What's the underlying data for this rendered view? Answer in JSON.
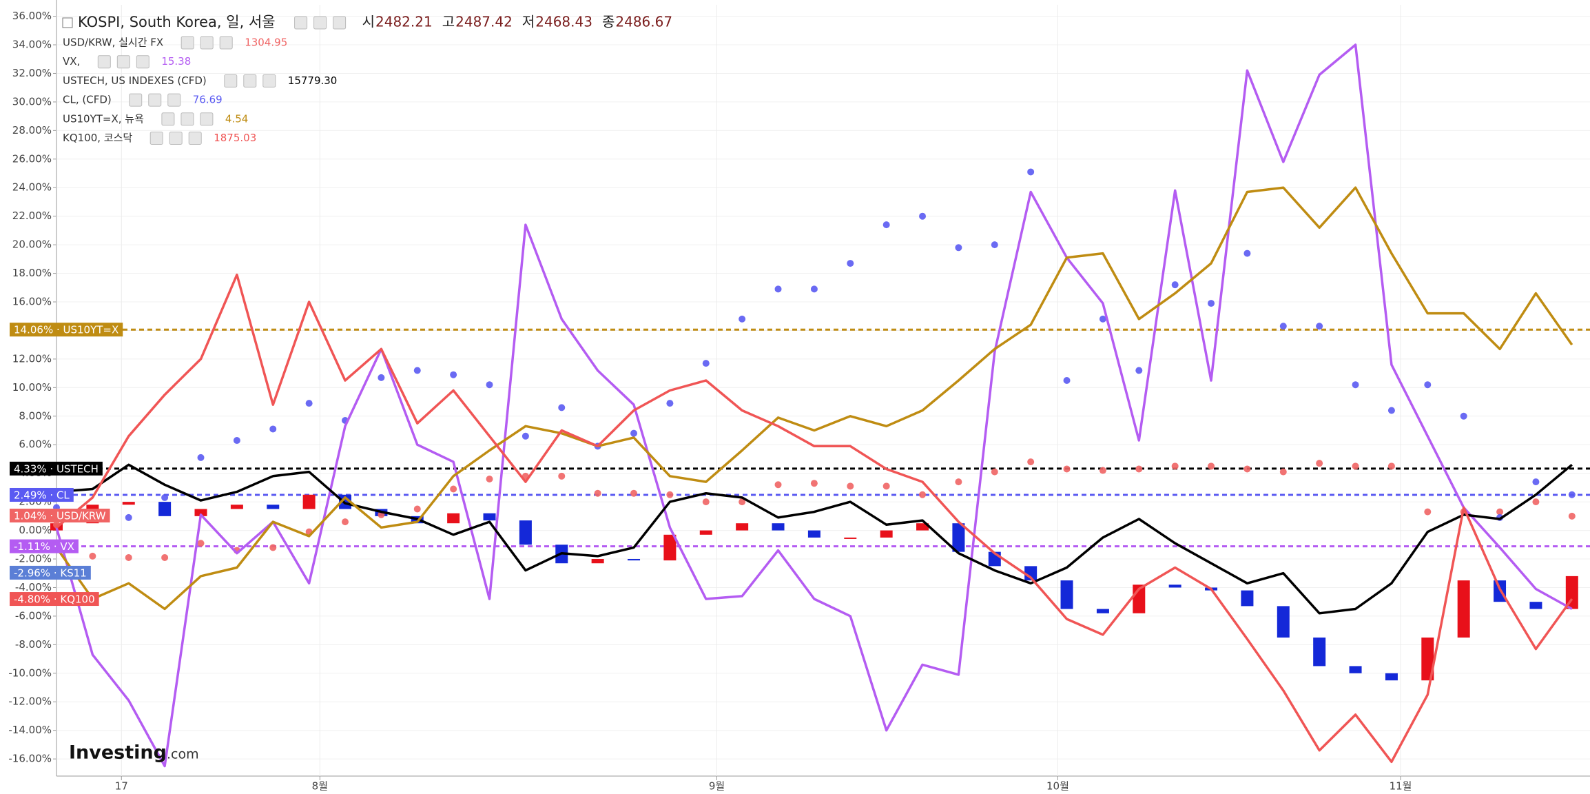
{
  "chart_data": {
    "type": "multi",
    "x": [
      0,
      2,
      4,
      6,
      8,
      10,
      12,
      14,
      16,
      18,
      20,
      22,
      24,
      26,
      28,
      30,
      32,
      34,
      36,
      38,
      40,
      42,
      44,
      46,
      48,
      50,
      52,
      54,
      56,
      58,
      60,
      62,
      64,
      66,
      68,
      70,
      72,
      74,
      76,
      78,
      80,
      82,
      84
    ],
    "xlim": [
      0,
      85
    ],
    "xticks": [
      {
        "value": 3.6,
        "label": "17"
      },
      {
        "value": 14.6,
        "label": "8월"
      },
      {
        "value": 36.6,
        "label": "9월"
      },
      {
        "value": 55.5,
        "label": "10월"
      },
      {
        "value": 74.5,
        "label": "11월"
      }
    ],
    "ylim": [
      -17.2,
      36.8
    ],
    "yticks": [
      {
        "value": -16,
        "label": "-16.00%"
      },
      {
        "value": -14,
        "label": "-14.00%"
      },
      {
        "value": -12,
        "label": "-12.00%"
      },
      {
        "value": -10,
        "label": "-10.00%"
      },
      {
        "value": -8,
        "label": "-8.00%"
      },
      {
        "value": -6,
        "label": "-6.00%"
      },
      {
        "value": -4,
        "label": "-4.00%"
      },
      {
        "value": -2,
        "label": "-2.00%"
      },
      {
        "value": 0,
        "label": "0.00%"
      },
      {
        "value": 2,
        "label": "2.00%"
      },
      {
        "value": 4,
        "label": "4.00%"
      },
      {
        "value": 6,
        "label": "6.00%"
      },
      {
        "value": 8,
        "label": "8.00%"
      },
      {
        "value": 10,
        "label": "10.00%"
      },
      {
        "value": 12,
        "label": "12.00%"
      },
      {
        "value": 14,
        "label": "14.00%"
      },
      {
        "value": 16,
        "label": "16.00%"
      },
      {
        "value": 18,
        "label": "18.00%"
      },
      {
        "value": 20,
        "label": "20.00%"
      },
      {
        "value": 22,
        "label": "22.00%"
      },
      {
        "value": 24,
        "label": "24.00%"
      },
      {
        "value": 26,
        "label": "26.00%"
      },
      {
        "value": 28,
        "label": "28.00%"
      },
      {
        "value": 30,
        "label": "30.00%"
      },
      {
        "value": 32,
        "label": "32.00%"
      },
      {
        "value": 34,
        "label": "34.00%"
      },
      {
        "value": 36,
        "label": "36.00%"
      }
    ],
    "grid": true,
    "watermark": [
      "Investing",
      ".com"
    ],
    "series": [
      {
        "name": "KOSPI, South Korea, 일, 서울",
        "type": "candle",
        "up_color": "#e8101a",
        "down_color": "#1428d8",
        "color": "#5b7fd6",
        "ohlc": [
          {
            "label": "시",
            "value": "2482.21"
          },
          {
            "label": "고",
            "value": "2487.42"
          },
          {
            "label": "저",
            "value": "2468.43"
          },
          {
            "label": "종",
            "value": "2486.67"
          }
        ],
        "open": [
          0,
          0.5,
          1.8,
          2.0,
          1.0,
          1.5,
          1.8,
          1.5,
          2.5,
          1.5,
          1.0,
          0.5,
          1.2,
          0.7,
          -1.0,
          -2.3,
          -2.0,
          -2.1,
          -0.3,
          0.0,
          0.5,
          0.0,
          -0.5,
          -0.5,
          0.0,
          0.5,
          -1.5,
          -2.5,
          -3.5,
          -5.5,
          -5.8,
          -3.8,
          -4.0,
          -4.2,
          -5.3,
          -7.5,
          -9.5,
          -10.0,
          -10.5,
          -7.5,
          -3.5,
          -5.0,
          -5.5
        ],
        "values": [
          0.5,
          1.8,
          2.0,
          1.0,
          1.5,
          1.8,
          1.5,
          2.5,
          1.5,
          1.0,
          0.5,
          1.2,
          0.7,
          -1.0,
          -2.3,
          -2.0,
          -2.1,
          -0.3,
          0.0,
          0.5,
          0.0,
          -0.5,
          -0.5,
          0.0,
          0.5,
          -1.5,
          -2.5,
          -3.5,
          -5.5,
          -5.8,
          -3.8,
          -4.0,
          -4.2,
          -5.3,
          -7.5,
          -9.5,
          -10.0,
          -10.5,
          -7.5,
          -3.5,
          -5.0,
          -5.5,
          -3.2
        ],
        "last_value": -2.96,
        "badge": "-2.96% · KS11"
      },
      {
        "name": "USD/KRW, 실시간 FX",
        "legend_value": "1304.95",
        "type": "dots",
        "color": "#f06464",
        "values": [
          0.4,
          -1.8,
          -1.9,
          -1.9,
          -0.9,
          -1.4,
          -1.2,
          -0.1,
          0.6,
          1.1,
          1.5,
          2.9,
          3.6,
          3.8,
          3.8,
          2.6,
          2.6,
          2.5,
          2.0,
          2.0,
          3.2,
          3.3,
          3.1,
          3.1,
          2.5,
          3.4,
          4.1,
          4.8,
          4.3,
          4.2,
          4.3,
          4.5,
          4.5,
          4.3,
          4.1,
          4.7,
          4.5,
          4.5,
          1.3,
          1.3,
          1.3,
          2.0,
          1.0
        ],
        "last_value": 1.04,
        "badge": "1.04% · USD/KRW"
      },
      {
        "name": "VX,",
        "legend_value": "15.38",
        "type": "line",
        "color": "#b45cf2",
        "price_line": true,
        "values": [
          0.2,
          -8.7,
          -11.9,
          -16.5,
          1.1,
          -1.6,
          0.6,
          -3.7,
          7.3,
          12.7,
          6.0,
          4.8,
          -4.8,
          21.4,
          14.8,
          11.2,
          8.8,
          0.2,
          -4.8,
          -4.6,
          -1.4,
          -4.8,
          -6.0,
          -14.0,
          -9.4,
          -10.1,
          12.5,
          23.7,
          19.1,
          15.9,
          6.3,
          23.8,
          10.5,
          32.2,
          25.8,
          31.9,
          34.0,
          11.6,
          6.6,
          1.6,
          -1.2,
          -4.1,
          -5.5
        ],
        "last_value": -1.11,
        "badge": "-1.11% · VX"
      },
      {
        "name": "USTECH, US INDEXES (CFD)",
        "legend_value": "15779.30",
        "type": "line",
        "color": "#000000",
        "price_line": true,
        "values": [
          2.7,
          2.9,
          4.6,
          3.2,
          2.1,
          2.7,
          3.8,
          4.1,
          1.9,
          1.3,
          0.8,
          -0.3,
          0.6,
          -2.8,
          -1.6,
          -1.8,
          -1.2,
          2.0,
          2.6,
          2.3,
          0.9,
          1.3,
          2.0,
          0.4,
          0.7,
          -1.6,
          -2.8,
          -3.7,
          -2.6,
          -0.5,
          0.8,
          -0.9,
          -2.3,
          -3.7,
          -3.0,
          -5.8,
          -5.5,
          -3.7,
          -0.1,
          1.1,
          0.8,
          2.5,
          4.6
        ],
        "last_value": 4.33,
        "badge": "4.33% · USTECH"
      },
      {
        "name": "CL, (CFD)",
        "legend_value": "76.69",
        "type": "dots",
        "color": "#5a5af2",
        "price_line": true,
        "values": [
          1.6,
          0.8,
          0.9,
          2.3,
          5.1,
          6.3,
          7.1,
          8.9,
          7.7,
          10.7,
          11.2,
          10.9,
          10.2,
          6.6,
          8.6,
          5.9,
          6.8,
          8.9,
          11.7,
          14.8,
          16.9,
          16.9,
          18.7,
          21.4,
          22.0,
          19.8,
          20.0,
          25.1,
          10.5,
          14.8,
          11.2,
          17.2,
          15.9,
          19.4,
          14.3,
          14.3,
          10.2,
          8.4,
          10.2,
          8.0,
          0.9,
          3.4,
          2.5
        ],
        "last_value": 2.49,
        "badge": "2.49% · CL"
      },
      {
        "name": "US10YT=X, 뉴욕",
        "legend_value": "4.54",
        "type": "line",
        "color": "#bf8c12",
        "price_line": true,
        "values": [
          -1.2,
          -4.8,
          -3.7,
          -5.5,
          -3.2,
          -2.6,
          0.6,
          -0.4,
          2.3,
          0.2,
          0.6,
          3.8,
          5.6,
          7.3,
          6.8,
          5.9,
          6.5,
          3.8,
          3.4,
          5.6,
          7.9,
          7.0,
          8.0,
          7.3,
          8.4,
          10.5,
          12.7,
          14.4,
          19.1,
          19.4,
          14.8,
          16.6,
          18.7,
          23.7,
          24.0,
          21.2,
          24.0,
          19.4,
          15.2,
          15.2,
          12.7,
          16.6,
          13.0
        ],
        "last_value": 14.06,
        "badge": "14.06% · US10YT=X"
      },
      {
        "name": "KQ100, 코스닥",
        "legend_value": "1875.03",
        "type": "line",
        "color": "#f05555",
        "values": [
          0.2,
          2.3,
          6.6,
          9.5,
          12.0,
          17.9,
          8.8,
          16.0,
          10.5,
          12.7,
          7.5,
          9.8,
          6.6,
          3.4,
          7.0,
          5.9,
          8.4,
          9.8,
          10.5,
          8.4,
          7.3,
          5.9,
          5.9,
          4.3,
          3.4,
          0.6,
          -1.6,
          -3.3,
          -6.2,
          -7.3,
          -4.1,
          -2.6,
          -4.1,
          -7.6,
          -11.2,
          -15.4,
          -12.9,
          -16.2,
          -11.5,
          1.6,
          -4.1,
          -8.3,
          -4.8
        ],
        "last_value": -4.8,
        "badge": "-4.80% · KQ100"
      }
    ]
  }
}
